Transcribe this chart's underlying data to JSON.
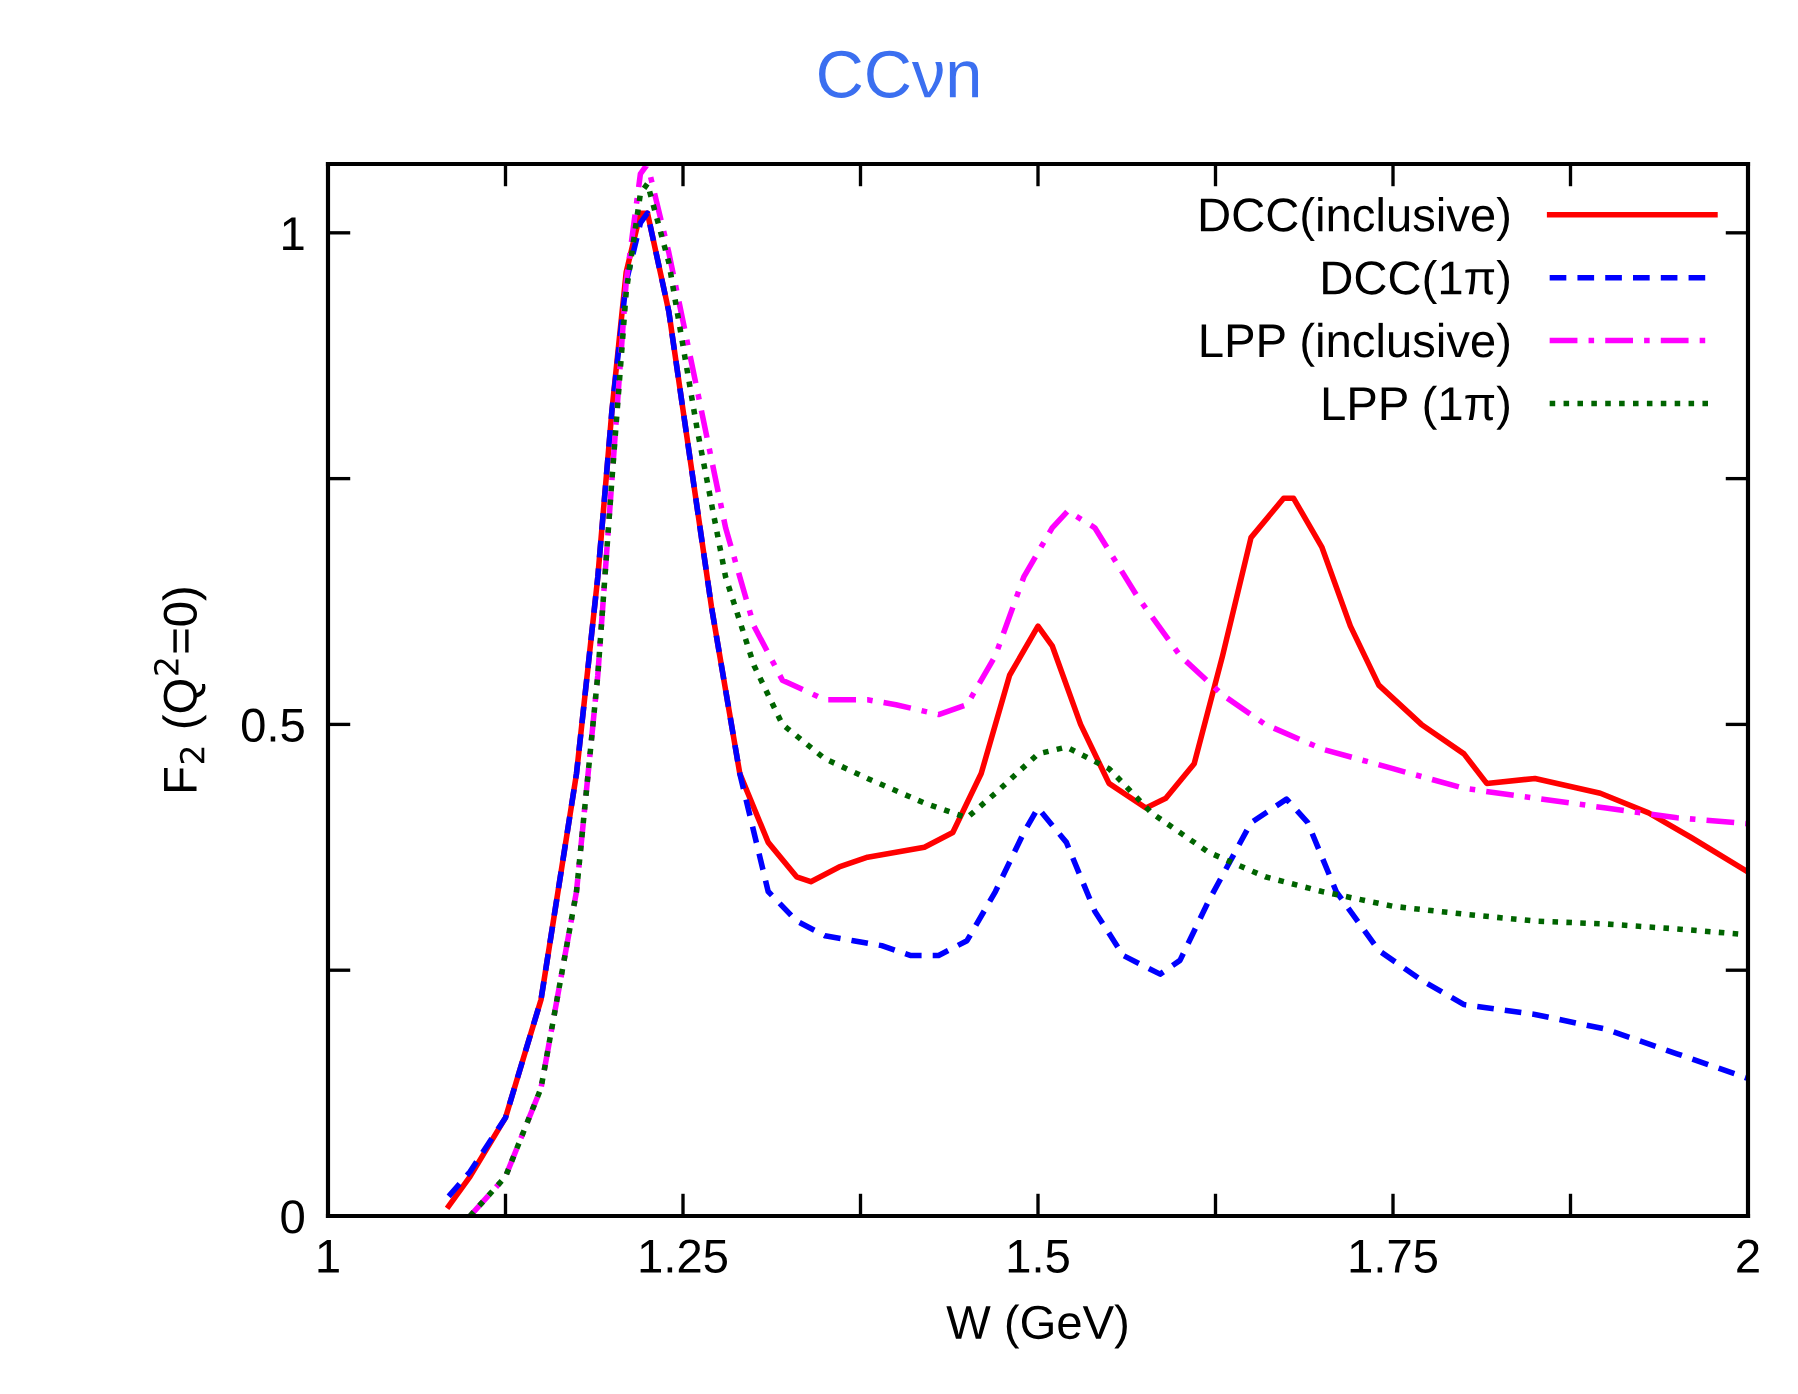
{
  "chart_data": {
    "type": "line",
    "title": "CCνn",
    "xlabel": "W (GeV)",
    "ylabel": "F$_{2}$ (Q$^{2}$=0)",
    "xlim": [
      1,
      2
    ],
    "ylim": [
      0,
      1.07
    ],
    "xticks": [
      1,
      {
        "value": 1.125,
        "label": null
      },
      1.25,
      {
        "value": 1.375,
        "label": null
      },
      1.5,
      {
        "value": 1.625,
        "label": null
      },
      1.75,
      {
        "value": 1.875,
        "label": null
      },
      2
    ],
    "yticks": [
      0,
      {
        "value": 0.25,
        "label": null
      },
      0.5,
      {
        "value": 0.75,
        "label": null
      },
      1
    ],
    "grid": false,
    "legend": "top right",
    "series": [
      {
        "name": "DCC(inclusive)",
        "color": "#ff0000",
        "line_style": "solid",
        "x": [
          1.085,
          1.1,
          1.125,
          1.15,
          1.175,
          1.19,
          1.2,
          1.21,
          1.22,
          1.225,
          1.24,
          1.25,
          1.27,
          1.29,
          1.31,
          1.33,
          1.34,
          1.36,
          1.38,
          1.42,
          1.44,
          1.46,
          1.48,
          1.5,
          1.51,
          1.53,
          1.55,
          1.576,
          1.59,
          1.61,
          1.63,
          1.65,
          1.673,
          1.68,
          1.7,
          1.72,
          1.74,
          1.77,
          1.8,
          1.816,
          1.85,
          1.896,
          1.93,
          1.96,
          2.0
        ],
        "values": [
          0.01,
          0.04,
          0.1,
          0.22,
          0.45,
          0.65,
          0.82,
          0.96,
          1.02,
          1.02,
          0.92,
          0.82,
          0.62,
          0.45,
          0.38,
          0.345,
          0.34,
          0.355,
          0.365,
          0.375,
          0.39,
          0.45,
          0.55,
          0.6,
          0.58,
          0.5,
          0.44,
          0.415,
          0.425,
          0.46,
          0.57,
          0.69,
          0.73,
          0.73,
          0.68,
          0.6,
          0.54,
          0.5,
          0.47,
          0.44,
          0.445,
          0.43,
          0.41,
          0.385,
          0.35
        ]
      },
      {
        "name": "DCC(1π)",
        "color": "#0000ff",
        "line_style": "dashed",
        "x": [
          1.085,
          1.1,
          1.125,
          1.15,
          1.175,
          1.19,
          1.2,
          1.21,
          1.22,
          1.225,
          1.24,
          1.25,
          1.27,
          1.29,
          1.31,
          1.33,
          1.35,
          1.37,
          1.39,
          1.41,
          1.43,
          1.45,
          1.47,
          1.49,
          1.5,
          1.52,
          1.54,
          1.56,
          1.586,
          1.6,
          1.62,
          1.65,
          1.675,
          1.69,
          1.71,
          1.74,
          1.77,
          1.8,
          1.85,
          1.9,
          1.95,
          2.0
        ],
        "values": [
          0.02,
          0.045,
          0.1,
          0.22,
          0.45,
          0.65,
          0.82,
          0.95,
          1.01,
          1.02,
          0.92,
          0.82,
          0.62,
          0.45,
          0.33,
          0.3,
          0.285,
          0.28,
          0.275,
          0.265,
          0.265,
          0.28,
          0.33,
          0.39,
          0.415,
          0.38,
          0.31,
          0.265,
          0.246,
          0.26,
          0.32,
          0.4,
          0.424,
          0.4,
          0.33,
          0.27,
          0.24,
          0.215,
          0.205,
          0.19,
          0.165,
          0.14
        ]
      },
      {
        "name": "LPP (inclusive)",
        "color": "#ff00ff",
        "line_style": "dashdot",
        "x": [
          1.1,
          1.125,
          1.15,
          1.175,
          1.19,
          1.2,
          1.21,
          1.22,
          1.225,
          1.24,
          1.26,
          1.28,
          1.3,
          1.32,
          1.35,
          1.38,
          1.4,
          1.43,
          1.45,
          1.47,
          1.49,
          1.51,
          1.521,
          1.54,
          1.57,
          1.6,
          1.63,
          1.66,
          1.7,
          1.75,
          1.8,
          1.85,
          1.9,
          1.95,
          2.0
        ],
        "values": [
          0.0,
          0.04,
          0.13,
          0.33,
          0.55,
          0.75,
          0.95,
          1.06,
          1.07,
          0.98,
          0.84,
          0.7,
          0.6,
          0.545,
          0.525,
          0.525,
          0.52,
          0.51,
          0.52,
          0.57,
          0.65,
          0.7,
          0.717,
          0.7,
          0.63,
          0.57,
          0.53,
          0.5,
          0.475,
          0.455,
          0.435,
          0.425,
          0.415,
          0.405,
          0.399
        ]
      },
      {
        "name": "LPP (1π)",
        "color": "#006400",
        "line_style": "dotted",
        "x": [
          1.1,
          1.125,
          1.15,
          1.175,
          1.19,
          1.2,
          1.21,
          1.22,
          1.225,
          1.24,
          1.26,
          1.28,
          1.3,
          1.32,
          1.35,
          1.38,
          1.42,
          1.45,
          1.47,
          1.5,
          1.52,
          1.55,
          1.58,
          1.62,
          1.66,
          1.7,
          1.75,
          1.8,
          1.85,
          1.9,
          1.95,
          2.0
        ],
        "values": [
          0.0,
          0.04,
          0.13,
          0.33,
          0.55,
          0.75,
          0.94,
          1.04,
          1.05,
          0.97,
          0.8,
          0.65,
          0.56,
          0.5,
          0.465,
          0.445,
          0.42,
          0.405,
          0.43,
          0.47,
          0.477,
          0.455,
          0.41,
          0.37,
          0.345,
          0.33,
          0.315,
          0.307,
          0.3,
          0.297,
          0.292,
          0.286
        ]
      }
    ]
  }
}
